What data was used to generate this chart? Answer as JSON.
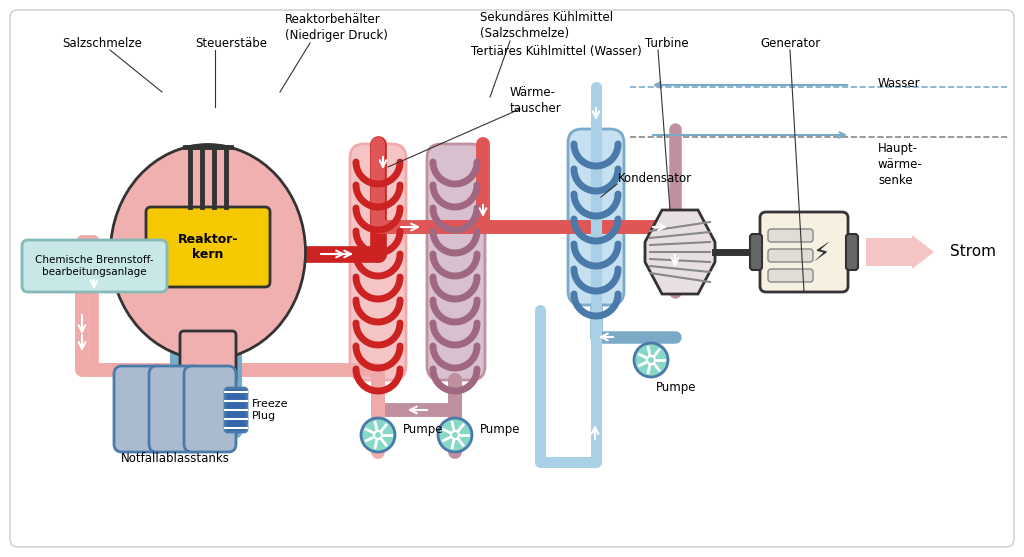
{
  "bg_color": "#ffffff",
  "colors": {
    "red_dark": "#cc2222",
    "red_medium": "#e05555",
    "red_light": "#f0aaaa",
    "pink_light": "#f5c5c5",
    "pink_reactor": "#f0b0b0",
    "yellow_core": "#f5c800",
    "blue_dark": "#4a7aaa",
    "blue_medium": "#7aaac8",
    "blue_light": "#aad0e8",
    "blue_very_light": "#c5e0f0",
    "teal_pump": "#88d8c8",
    "gray_dark": "#333333",
    "gray_medium": "#888888",
    "gray_light": "#dddddd",
    "generator_bg": "#f5f0e0",
    "chemical_bg": "#c8e8e8",
    "freeze_blue": "#3366aa",
    "purple_coil": "#a06880",
    "purple_hx": "#d8c0d0",
    "purple_hx_ec": "#c090a0"
  },
  "labels": {
    "salzschmelze": "Salzschmelze",
    "steuerstabe": "Steuerstäbe",
    "reaktorbehalter": "Reaktorbehälter\n(Niedriger Druck)",
    "reaktorkern": "Reaktor-\nkern",
    "sekundares": "Sekundäres Kühlmittel\n(Salzschmelze)",
    "warmetauscher": "Wärme-\ntauscher",
    "turbine": "Turbine",
    "generator": "Generator",
    "strom": "Strom",
    "kondensator": "Kondensator",
    "hauptwarmesenke": "Haupt-\nwärme-\nsenke",
    "wasser": "Wasser",
    "tertiar": "Tertiäres Kühlmittel (Wasser)",
    "pumpe": "Pumpe",
    "freeze_plug": "Freeze\nPlug",
    "notfall": "Notfallablasstanks",
    "chemical": "Chemische Brennstoff-\nbearbeitungsanlage"
  }
}
